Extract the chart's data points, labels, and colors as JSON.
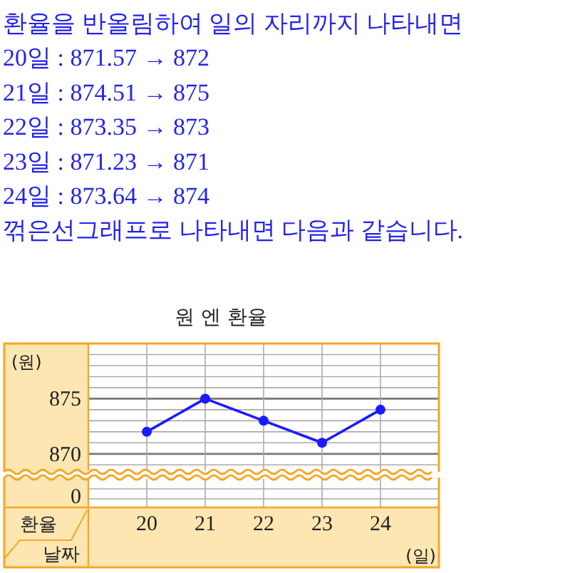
{
  "chart_data": {
    "type": "line",
    "title": "원 엔 환율",
    "xlabel": "날짜",
    "ylabel": "환율",
    "annotations": [
      "환율을 반올림하여 일의 자리까지 나타내면",
      "20일 : 871.57 → 872",
      "21일 : 874.51 → 875",
      "22일 : 873.35 → 873",
      "23일 : 871.23 → 871",
      "24일 : 873.64 → 874",
      "꺾은선그래프로 나타내면 다음과 같습니다.",
      "(원)",
      "(일)",
      "0"
    ],
    "categories": [
      "20",
      "21",
      "22",
      "23",
      "24"
    ],
    "series": [
      {
        "color": "#1a1aff",
        "values": [
          872,
          875,
          873,
          871,
          874
        ]
      }
    ],
    "ylim": [
      868.5,
      880
    ],
    "yticks": [
      870,
      875
    ],
    "grid": true,
    "marker": "circle"
  }
}
